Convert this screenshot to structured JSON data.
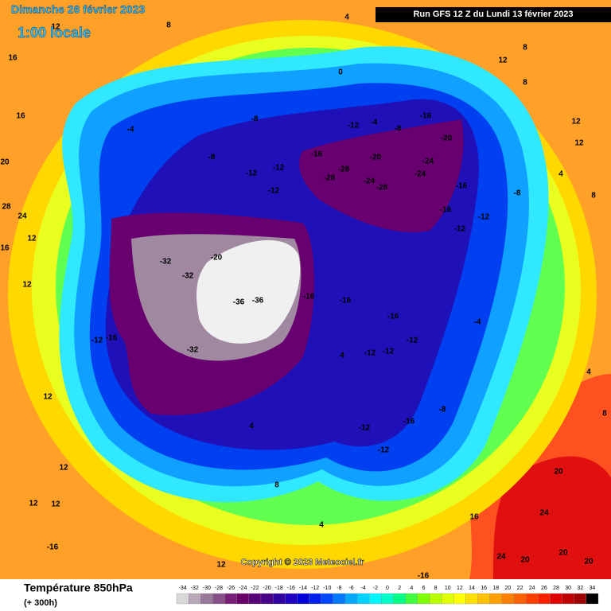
{
  "header": {
    "date": "Dimanche 26 février 2023",
    "time": "1:00 locale",
    "run": "Run GFS 12 Z du Lundi 13 février 2023"
  },
  "map": {
    "labels": [
      "16",
      "16",
      "20",
      "28",
      "24",
      "16",
      "12",
      "8",
      "4",
      "0",
      "8",
      "12",
      "8",
      "-4",
      "-8",
      "-12",
      "-12",
      "-12",
      "-8",
      "-12",
      "-4",
      "-8",
      "-16",
      "-20",
      "-16",
      "-20",
      "-24",
      "-28",
      "-28",
      "-24",
      "-24",
      "-28",
      "-16",
      "-16",
      "-12",
      "-32",
      "-32",
      "-20",
      "-36",
      "-36",
      "-32",
      "-16",
      "-16",
      "-16",
      "-12",
      "-12",
      "-12",
      "-16",
      "-12",
      "-12",
      "-8",
      "-12",
      "-16",
      "12",
      "12",
      "12",
      "12",
      "-16",
      "12",
      "-16",
      "16",
      "20",
      "24",
      "24",
      "20",
      "20",
      "20",
      "8",
      "4",
      "8",
      "12",
      "12",
      "4",
      "-8",
      "-12",
      "-4",
      "4",
      "4",
      "8",
      "4",
      "12",
      "12"
    ]
  },
  "copyright": "Copyright © 2023 Meteociel.fr",
  "legend": {
    "title": "Température 850hPa",
    "lead": "(+ 300h)",
    "scale": [
      {
        "value": -34,
        "color": "#d8d8d8"
      },
      {
        "value": -32,
        "color": "#b8a8b8"
      },
      {
        "value": -30,
        "color": "#987898"
      },
      {
        "value": -28,
        "color": "#885088"
      },
      {
        "value": -26,
        "color": "#782078"
      },
      {
        "value": -24,
        "color": "#680068"
      },
      {
        "value": -22,
        "color": "#580078"
      },
      {
        "value": -20,
        "color": "#480088"
      },
      {
        "value": -18,
        "color": "#3000a0"
      },
      {
        "value": -16,
        "color": "#2000c0"
      },
      {
        "value": -14,
        "color": "#0000d8"
      },
      {
        "value": -12,
        "color": "#0020f0"
      },
      {
        "value": -10,
        "color": "#0048ff"
      },
      {
        "value": -8,
        "color": "#0078ff"
      },
      {
        "value": -6,
        "color": "#00a8ff"
      },
      {
        "value": -4,
        "color": "#00d0ff"
      },
      {
        "value": -2,
        "color": "#00f8ff"
      },
      {
        "value": 0,
        "color": "#00ffc8"
      },
      {
        "value": 2,
        "color": "#00ff88"
      },
      {
        "value": 4,
        "color": "#40ff40"
      },
      {
        "value": 6,
        "color": "#80ff00"
      },
      {
        "value": 8,
        "color": "#b8ff00"
      },
      {
        "value": 10,
        "color": "#e0ff00"
      },
      {
        "value": 12,
        "color": "#ffff00"
      },
      {
        "value": 14,
        "color": "#ffe000"
      },
      {
        "value": 16,
        "color": "#ffc000"
      },
      {
        "value": 18,
        "color": "#ffa000"
      },
      {
        "value": 20,
        "color": "#ff8000"
      },
      {
        "value": 22,
        "color": "#ff6000"
      },
      {
        "value": 24,
        "color": "#ff4000"
      },
      {
        "value": 26,
        "color": "#ff2000"
      },
      {
        "value": 28,
        "color": "#e00000"
      },
      {
        "value": 30,
        "color": "#c00000"
      },
      {
        "value": 32,
        "color": "#a00000"
      },
      {
        "value": 34,
        "color": "#000000"
      }
    ]
  }
}
